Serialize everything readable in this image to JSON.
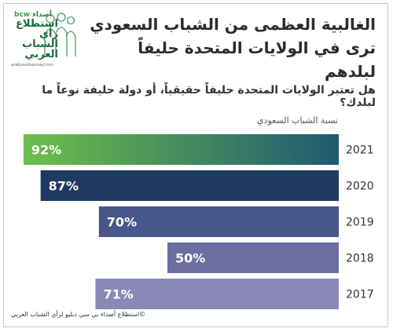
{
  "logo": {
    "brand": "أصداء",
    "brand_bcw": "bcw",
    "survey_name": "استطلاع رأي الشباب العربي",
    "url": "arabyouthsurvey.com"
  },
  "title": {
    "line1": "الغالبية العظمى من الشباب السعودي",
    "line2": "ترى في الولايات المتحدة حليفاً لبلدهم"
  },
  "question": "هل تعتبر الولايات المتحدة حليفاً حقيقياً، أو دولة حليفة نوعاً ما لبلدك؟",
  "legend": "نسبة الشباب السعودي",
  "footer": "©استطلاع أصداء بي سي دبليو لرأي الشباب العربي",
  "colors": {
    "bar_2021_start": "#6cc04a",
    "bar_2021_end": "#1d5a72",
    "bar_2020": "#1e3a5f",
    "bar_2019": "#48578a",
    "bar_2018": "#6a6ea0",
    "bar_2017": "#8a88b6"
  },
  "chart_data": {
    "type": "bar",
    "orientation": "horizontal",
    "categories": [
      "2021",
      "2020",
      "2019",
      "2018",
      "2017"
    ],
    "values": [
      92,
      87,
      70,
      50,
      71
    ],
    "value_labels": [
      "92%",
      "87%",
      "70%",
      "50%",
      "71%"
    ],
    "xlim": [
      0,
      100
    ],
    "grid": false
  }
}
